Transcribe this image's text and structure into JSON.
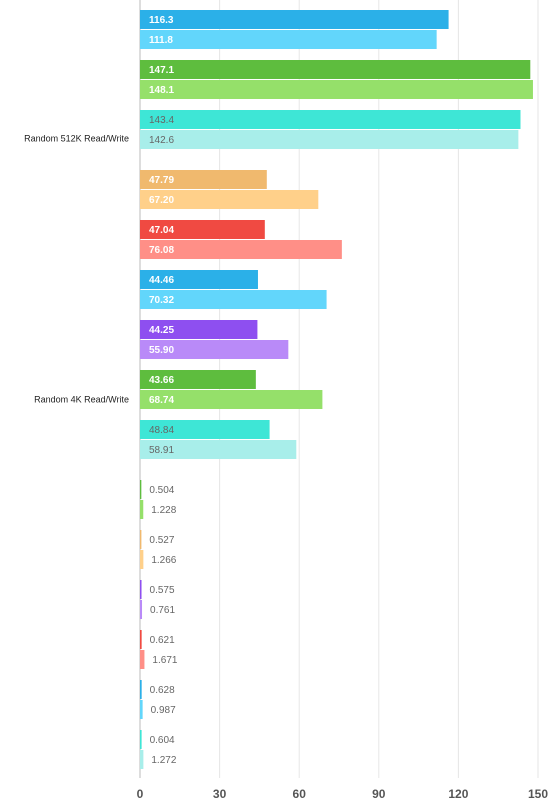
{
  "chart_data": {
    "type": "bar",
    "orientation": "horizontal",
    "xlim": [
      0,
      150
    ],
    "xticks": [
      0,
      30,
      60,
      90,
      120,
      150
    ],
    "grid": true,
    "groups": [
      {
        "label": "Random 512K Read/Write",
        "bars": [
          {
            "colors": [
              "#2bb0e8",
              "#62d6fb"
            ],
            "label_color": "#ffffff",
            "values": [
              116.3,
              111.8
            ],
            "value_labels": [
              "116.3",
              "111.8"
            ]
          },
          {
            "colors": [
              "#5ebd3e",
              "#95e06a"
            ],
            "label_color": "#ffffff",
            "values": [
              147.1,
              148.1
            ],
            "value_labels": [
              "147.1",
              "148.1"
            ]
          },
          {
            "colors": [
              "#3ee6d6",
              "#a8eeea"
            ],
            "label_color": "#666666",
            "values": [
              143.4,
              142.6
            ],
            "value_labels": [
              "143.4",
              "142.6"
            ]
          }
        ]
      },
      {
        "label": "Random 4K Read/Write",
        "bars": [
          {
            "colors": [
              "#f0b96e",
              "#ffd08a"
            ],
            "label_color": "#ffffff",
            "values": [
              47.79,
              67.2
            ],
            "value_labels": [
              "47.79",
              "67.20"
            ]
          },
          {
            "colors": [
              "#f04a42",
              "#ff8f87"
            ],
            "label_color": "#ffffff",
            "values": [
              47.04,
              76.08
            ],
            "value_labels": [
              "47.04",
              "76.08"
            ]
          },
          {
            "colors": [
              "#2bb0e8",
              "#62d6fb"
            ],
            "label_color": "#ffffff",
            "values": [
              44.46,
              70.32
            ],
            "value_labels": [
              "44.46",
              "70.32"
            ]
          },
          {
            "colors": [
              "#8e4ff0",
              "#b98af8"
            ],
            "label_color": "#ffffff",
            "values": [
              44.25,
              55.9
            ],
            "value_labels": [
              "44.25",
              "55.90"
            ]
          },
          {
            "colors": [
              "#5ebd3e",
              "#95e06a"
            ],
            "label_color": "#ffffff",
            "values": [
              43.66,
              68.74
            ],
            "value_labels": [
              "43.66",
              "68.74"
            ]
          },
          {
            "colors": [
              "#3ee6d6",
              "#a8eeea"
            ],
            "label_color": "#666666",
            "values": [
              48.84,
              58.91
            ],
            "value_labels": [
              "48.84",
              "58.91"
            ]
          }
        ]
      },
      {
        "label": null,
        "bars": [
          {
            "colors": [
              "#5ebd3e",
              "#95e06a"
            ],
            "label_color": "#666666",
            "values": [
              0.504,
              1.228
            ],
            "value_labels": [
              "0.504",
              "1.228"
            ]
          },
          {
            "colors": [
              "#f0b96e",
              "#ffd08a"
            ],
            "label_color": "#666666",
            "values": [
              0.527,
              1.266
            ],
            "value_labels": [
              "0.527",
              "1.266"
            ]
          },
          {
            "colors": [
              "#8e4ff0",
              "#b98af8"
            ],
            "label_color": "#666666",
            "values": [
              0.575,
              0.761
            ],
            "value_labels": [
              "0.575",
              "0.761"
            ]
          },
          {
            "colors": [
              "#f04a42",
              "#ff8f87"
            ],
            "label_color": "#666666",
            "values": [
              0.621,
              1.671
            ],
            "value_labels": [
              "0.621",
              "1.671"
            ]
          },
          {
            "colors": [
              "#2bb0e8",
              "#62d6fb"
            ],
            "label_color": "#666666",
            "values": [
              0.628,
              0.987
            ],
            "value_labels": [
              "0.628",
              "0.987"
            ]
          },
          {
            "colors": [
              "#3ee6d6",
              "#a8eeea"
            ],
            "label_color": "#666666",
            "values": [
              0.604,
              1.272
            ],
            "value_labels": [
              "0.604",
              "1.272"
            ]
          }
        ]
      }
    ]
  }
}
